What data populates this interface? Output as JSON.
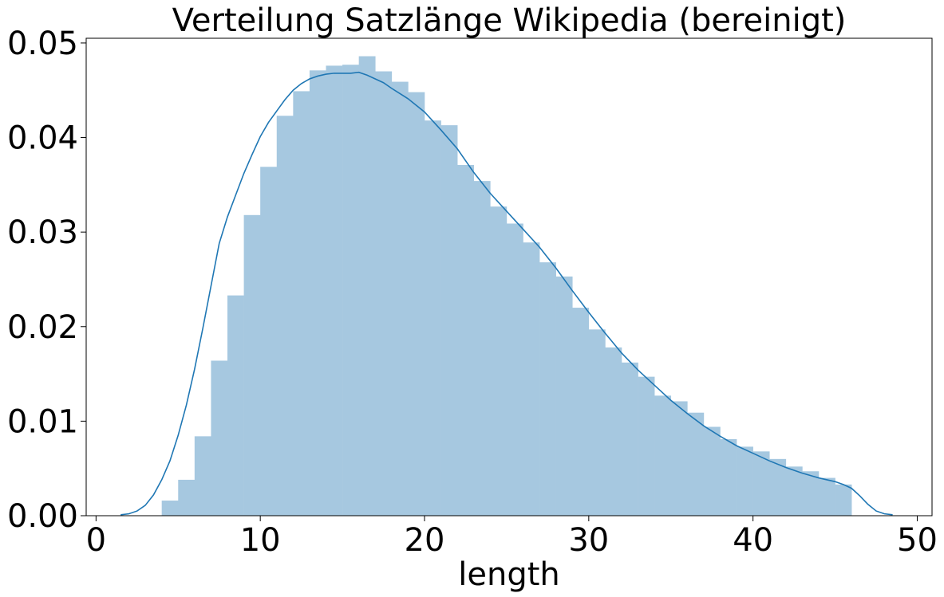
{
  "chart_data": {
    "type": "bar",
    "title": "Verteilung Satzlänge Wikipedia (bereinigt)",
    "xlabel": "length",
    "ylabel": "",
    "xlim": [
      -0.6,
      50.9
    ],
    "ylim": [
      0,
      0.0505
    ],
    "x_ticks": [
      0,
      10,
      20,
      30,
      40,
      50
    ],
    "x_tick_labels": [
      "0",
      "10",
      "20",
      "30",
      "40",
      "50"
    ],
    "y_ticks": [
      0,
      0.01,
      0.02,
      0.03,
      0.04,
      0.05
    ],
    "y_tick_labels": [
      "0.00",
      "0.01",
      "0.02",
      "0.03",
      "0.04",
      "0.05"
    ],
    "grid": false,
    "histogram": {
      "bin_edges": [
        4,
        5,
        6,
        7,
        8,
        9,
        10,
        11,
        12,
        13,
        14,
        15,
        16,
        17,
        18,
        19,
        20,
        21,
        22,
        23,
        24,
        25,
        26,
        27,
        28,
        29,
        30,
        31,
        32,
        33,
        34,
        35,
        36,
        37,
        38,
        39,
        40,
        41,
        42,
        43,
        44,
        45,
        46
      ],
      "values": [
        0.0016,
        0.0038,
        0.0084,
        0.0164,
        0.0233,
        0.0318,
        0.0369,
        0.0423,
        0.0449,
        0.0471,
        0.0476,
        0.0477,
        0.0486,
        0.047,
        0.0459,
        0.0448,
        0.0418,
        0.0413,
        0.0371,
        0.0354,
        0.0327,
        0.0309,
        0.0289,
        0.0268,
        0.0253,
        0.022,
        0.0197,
        0.0178,
        0.0162,
        0.0147,
        0.0127,
        0.0121,
        0.0109,
        0.0094,
        0.0081,
        0.0073,
        0.0068,
        0.006,
        0.0052,
        0.0047,
        0.004,
        0.0033
      ],
      "color": "#a6c8e0"
    },
    "kde": {
      "x": [
        1.5,
        2.0,
        2.5,
        3.0,
        3.5,
        4.0,
        4.5,
        5.0,
        5.5,
        6.0,
        6.5,
        7.0,
        7.5,
        8.0,
        8.5,
        9.0,
        9.5,
        10.0,
        10.5,
        11.0,
        11.5,
        12.0,
        12.5,
        13.0,
        13.5,
        14.0,
        14.5,
        15.0,
        15.5,
        16.0,
        16.5,
        17.0,
        17.5,
        18.0,
        19.0,
        20.0,
        21.0,
        22.0,
        23.0,
        24.0,
        25.0,
        26.0,
        27.0,
        28.0,
        29.0,
        30.0,
        31.0,
        32.0,
        33.0,
        34.0,
        35.0,
        36.0,
        37.0,
        38.0,
        39.0,
        40.0,
        41.0,
        42.0,
        43.0,
        44.0,
        45.0,
        45.5,
        46.0,
        46.5,
        47.0,
        47.5,
        48.0,
        48.5
      ],
      "y": [
        0.0001,
        0.0002,
        0.0005,
        0.0011,
        0.0022,
        0.0038,
        0.0058,
        0.0085,
        0.0117,
        0.0155,
        0.0198,
        0.0243,
        0.0288,
        0.0316,
        0.0339,
        0.0362,
        0.0382,
        0.0401,
        0.0416,
        0.0428,
        0.044,
        0.045,
        0.0457,
        0.0462,
        0.0465,
        0.0467,
        0.0468,
        0.0468,
        0.0468,
        0.0469,
        0.0466,
        0.0462,
        0.0458,
        0.0452,
        0.0441,
        0.0427,
        0.0408,
        0.0388,
        0.0363,
        0.0341,
        0.0322,
        0.0303,
        0.0284,
        0.0262,
        0.0238,
        0.0215,
        0.0193,
        0.0172,
        0.0154,
        0.0138,
        0.0122,
        0.0108,
        0.0095,
        0.0084,
        0.0074,
        0.0066,
        0.0058,
        0.0051,
        0.0045,
        0.004,
        0.0036,
        0.0033,
        0.0029,
        0.0021,
        0.0012,
        0.0005,
        0.0002,
        0.0001
      ],
      "color": "#1f77b4"
    }
  }
}
